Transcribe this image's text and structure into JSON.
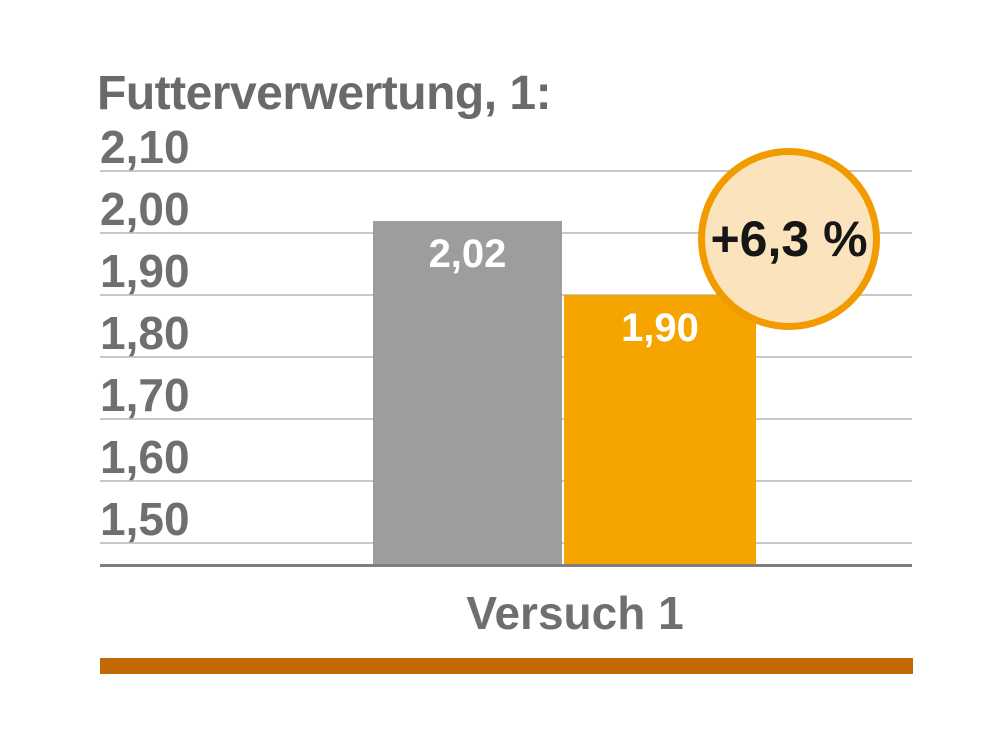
{
  "title": "Futterverwertung, 1:",
  "x_axis_label": "Versuch 1",
  "badge": {
    "label": "+6,3 %"
  },
  "colors": {
    "bar_gray": "#9d9d9c",
    "bar_orange": "#f6a500",
    "badge_fill": "#fbe4bd",
    "badge_border": "#f29b00",
    "badge_text": "#161615",
    "bottom_accent": "#c36a04",
    "gridline": "#c8c8c8",
    "axis_line": "#7e7e7e",
    "text_gray": "#706f6f",
    "bar_value_text": "#ffffff"
  },
  "chart_data": {
    "type": "bar",
    "title": "Futterverwertung, 1:",
    "categories": [
      "Versuch 1"
    ],
    "series": [
      {
        "values": [
          2.02
        ],
        "value_labels": [
          "2,02"
        ],
        "color": "#9d9d9c"
      },
      {
        "values": [
          1.9
        ],
        "value_labels": [
          "1,90"
        ],
        "color": "#f6a500"
      }
    ],
    "yticks": [
      2.1,
      2.0,
      1.9,
      1.8,
      1.7,
      1.6,
      1.5
    ],
    "ytick_labels": [
      "2,10",
      "2,00",
      "1,90",
      "1,80",
      "1,70",
      "1,60",
      "1,50"
    ],
    "ylim": [
      1.466,
      2.1
    ],
    "grid": true,
    "legend": false,
    "annotation": {
      "text": "+6,3 %",
      "shape": "circle"
    }
  }
}
